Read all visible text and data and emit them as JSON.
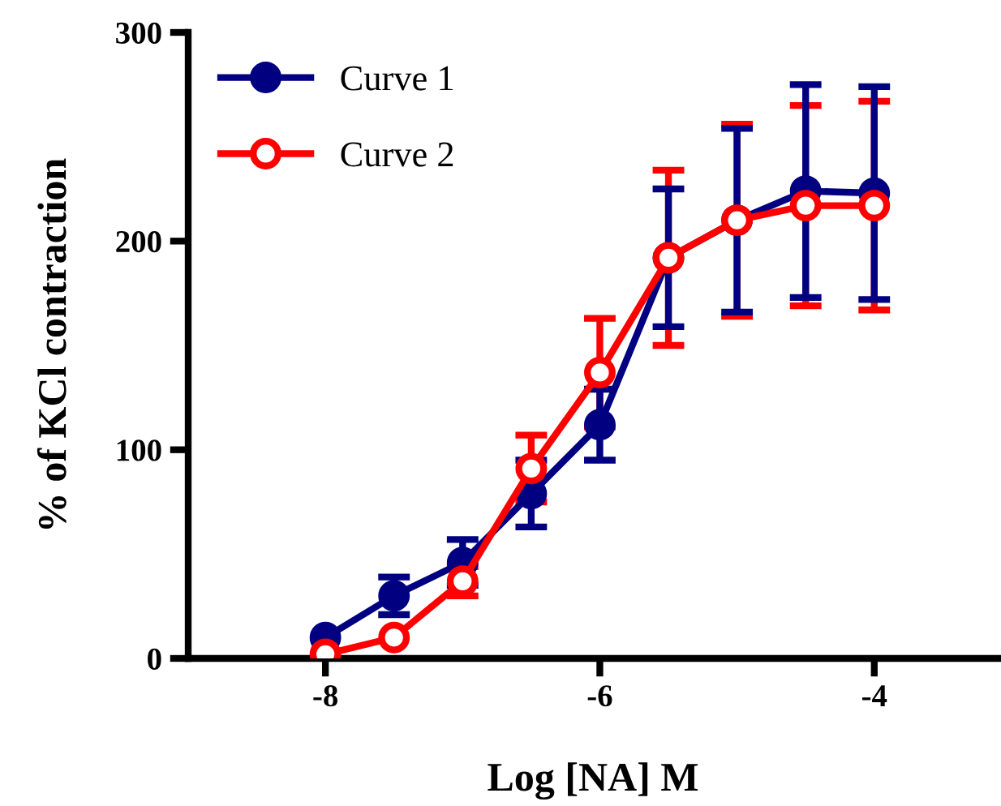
{
  "chart_data": {
    "type": "line",
    "xlabel": "Log [NA] M",
    "ylabel": "% of KCl contraction",
    "x": [
      -8,
      -7.5,
      -7,
      -6.5,
      -6,
      -5.5,
      -5,
      -4.5,
      -4
    ],
    "xlim": [
      -9,
      -3.1
    ],
    "xticks": [
      -8,
      -6,
      -4
    ],
    "ylim": [
      0,
      300
    ],
    "yticks": [
      0,
      100,
      200,
      300
    ],
    "grid": false,
    "legend": "top left",
    "series": [
      {
        "name": "Curve 1",
        "color": "#000080",
        "marker": "circle",
        "values": [
          10,
          30,
          46,
          79,
          112,
          192,
          210,
          224,
          223
        ],
        "errors": [
          null,
          9,
          11,
          16,
          17,
          33,
          44,
          51,
          51
        ]
      },
      {
        "name": "Curve 2",
        "color": "#ff0000",
        "marker": "circle_open",
        "values": [
          2,
          10,
          37,
          91,
          137,
          192,
          210,
          217,
          217
        ],
        "errors": [
          null,
          null,
          7,
          16,
          26,
          42,
          46,
          48,
          50
        ]
      }
    ]
  }
}
